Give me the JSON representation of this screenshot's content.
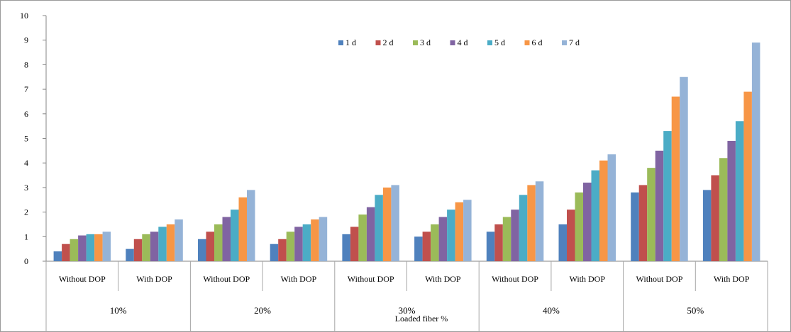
{
  "chart_data": {
    "type": "bar",
    "title": "",
    "xlabel": "Loaded fiber %",
    "ylabel": "",
    "ylim": [
      0,
      10
    ],
    "yticks": [
      "0",
      "1",
      "2",
      "3",
      "4",
      "5",
      "6",
      "7",
      "8",
      "9",
      "10"
    ],
    "grid": false,
    "legend_position": "top-right",
    "groups": [
      "10%",
      "20%",
      "30%",
      "40%",
      "50%"
    ],
    "categories": [
      "Without DOP",
      "With DOP",
      "Without DOP",
      "With DOP",
      "Without DOP",
      "With DOP",
      "Without DOP",
      "With DOP",
      "Without DOP",
      "With DOP"
    ],
    "series": [
      {
        "name": "1 d",
        "color": "#4f81bd",
        "values": [
          0.4,
          0.5,
          0.9,
          0.7,
          1.1,
          1.0,
          1.2,
          1.5,
          2.8,
          2.9
        ]
      },
      {
        "name": "2 d",
        "color": "#c0504d",
        "values": [
          0.7,
          0.9,
          1.2,
          0.9,
          1.4,
          1.2,
          1.5,
          2.1,
          3.1,
          3.5
        ]
      },
      {
        "name": "3 d",
        "color": "#9bbb59",
        "values": [
          0.9,
          1.1,
          1.5,
          1.2,
          1.9,
          1.5,
          1.8,
          2.8,
          3.8,
          4.2
        ]
      },
      {
        "name": "4 d",
        "color": "#8064a2",
        "values": [
          1.05,
          1.2,
          1.8,
          1.4,
          2.2,
          1.8,
          2.1,
          3.2,
          4.5,
          4.9
        ]
      },
      {
        "name": "5 d",
        "color": "#4bacc6",
        "values": [
          1.1,
          1.4,
          2.1,
          1.5,
          2.7,
          2.1,
          2.7,
          3.7,
          5.3,
          5.7
        ]
      },
      {
        "name": "6 d",
        "color": "#f79646",
        "values": [
          1.1,
          1.5,
          2.6,
          1.7,
          3.0,
          2.4,
          3.1,
          4.1,
          6.7,
          6.9
        ]
      },
      {
        "name": "7 d",
        "color": "#95b3d7",
        "values": [
          1.2,
          1.7,
          2.9,
          1.8,
          3.1,
          2.5,
          3.25,
          4.35,
          7.5,
          8.9
        ]
      }
    ]
  }
}
